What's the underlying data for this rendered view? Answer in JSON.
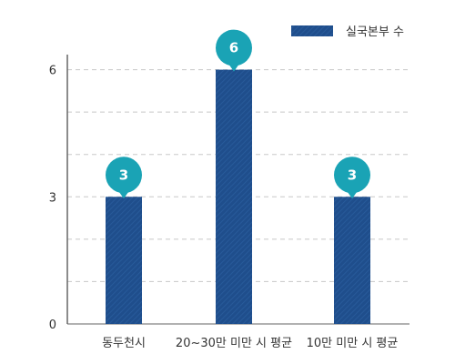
{
  "chart_data": {
    "type": "bar",
    "categories": [
      "동두천시",
      "20~30만 미만 시 평균",
      "10만 미만 시 평균"
    ],
    "series": [
      {
        "name": "실국본부 수",
        "values": [
          3,
          6,
          3
        ]
      }
    ],
    "data_labels": [
      "3",
      "6",
      "3"
    ],
    "ylim": [
      0,
      7
    ],
    "yticks": [
      0,
      3,
      6
    ],
    "ytick_labels": [
      "0",
      "3",
      "6"
    ],
    "grid": true,
    "legend_position": "top-right",
    "title": "",
    "xlabel": "",
    "ylabel": ""
  },
  "colors": {
    "bar": "#1f4e8c",
    "bubble": "#1aa3b5",
    "grid": "#c8c8c8",
    "axis": "#666666"
  }
}
